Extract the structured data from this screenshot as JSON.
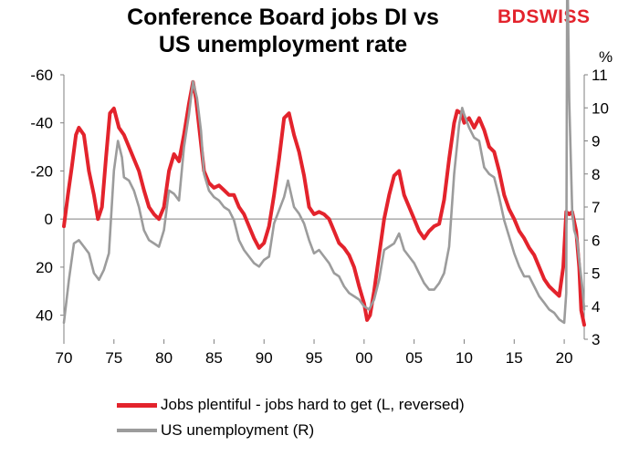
{
  "title_line1": "Conference Board jobs DI vs",
  "title_line2": "US unemployment rate",
  "logo": {
    "part1": "BD",
    "part2": "SWISS"
  },
  "colors": {
    "red": "#e3232c",
    "grey": "#9c9c9c",
    "axis": "#7f7f7f"
  },
  "chart_data": {
    "type": "line",
    "right_axis_unit": "%",
    "xlim": [
      1970,
      2022
    ],
    "x_ticks": [
      "70",
      "75",
      "80",
      "85",
      "90",
      "95",
      "00",
      "05",
      "10",
      "15",
      "20"
    ],
    "left_axis": {
      "min": -60,
      "max": 50,
      "reversed": true,
      "ticks": [
        "-60",
        "-40",
        "-20",
        "0",
        "20",
        "40"
      ]
    },
    "right_axis": {
      "min": 3,
      "max": 11,
      "ticks": [
        "3",
        "4",
        "5",
        "6",
        "7",
        "8",
        "9",
        "10",
        "11"
      ]
    },
    "series": [
      {
        "name": "Jobs plentiful - jobs hard to get (L, reversed)",
        "axis": "left",
        "color": "#e3232c",
        "points": [
          [
            1970,
            3
          ],
          [
            1970.4,
            -10
          ],
          [
            1970.8,
            -22
          ],
          [
            1971.2,
            -35
          ],
          [
            1971.5,
            -38
          ],
          [
            1972,
            -35
          ],
          [
            1972.5,
            -20
          ],
          [
            1973,
            -10
          ],
          [
            1973.4,
            0
          ],
          [
            1973.8,
            -5
          ],
          [
            1974.2,
            -25
          ],
          [
            1974.6,
            -44
          ],
          [
            1975,
            -46
          ],
          [
            1975.5,
            -38
          ],
          [
            1976,
            -35
          ],
          [
            1976.5,
            -30
          ],
          [
            1977,
            -25
          ],
          [
            1977.5,
            -20
          ],
          [
            1978,
            -12
          ],
          [
            1978.5,
            -5
          ],
          [
            1979,
            -2
          ],
          [
            1979.5,
            0
          ],
          [
            1980,
            -5
          ],
          [
            1980.5,
            -20
          ],
          [
            1981,
            -27
          ],
          [
            1981.5,
            -24
          ],
          [
            1982,
            -35
          ],
          [
            1982.5,
            -48
          ],
          [
            1982.9,
            -57
          ],
          [
            1983.2,
            -50
          ],
          [
            1983.6,
            -35
          ],
          [
            1984,
            -20
          ],
          [
            1984.5,
            -15
          ],
          [
            1985,
            -13
          ],
          [
            1985.5,
            -14
          ],
          [
            1986,
            -12
          ],
          [
            1986.5,
            -10
          ],
          [
            1987,
            -10
          ],
          [
            1987.5,
            -5
          ],
          [
            1988,
            -2
          ],
          [
            1988.5,
            3
          ],
          [
            1989,
            8
          ],
          [
            1989.5,
            12
          ],
          [
            1990,
            10
          ],
          [
            1990.5,
            3
          ],
          [
            1991,
            -10
          ],
          [
            1991.5,
            -25
          ],
          [
            1992,
            -42
          ],
          [
            1992.5,
            -44
          ],
          [
            1993,
            -35
          ],
          [
            1993.5,
            -28
          ],
          [
            1994,
            -18
          ],
          [
            1994.5,
            -5
          ],
          [
            1995,
            -2
          ],
          [
            1995.5,
            -3
          ],
          [
            1996,
            -2
          ],
          [
            1996.5,
            0
          ],
          [
            1997,
            5
          ],
          [
            1997.5,
            10
          ],
          [
            1998,
            12
          ],
          [
            1998.5,
            15
          ],
          [
            1999,
            20
          ],
          [
            1999.5,
            28
          ],
          [
            2000,
            35
          ],
          [
            2000.3,
            42
          ],
          [
            2000.6,
            40
          ],
          [
            2001,
            30
          ],
          [
            2001.5,
            15
          ],
          [
            2002,
            0
          ],
          [
            2002.5,
            -10
          ],
          [
            2003,
            -18
          ],
          [
            2003.5,
            -20
          ],
          [
            2004,
            -10
          ],
          [
            2004.5,
            -5
          ],
          [
            2005,
            0
          ],
          [
            2005.5,
            5
          ],
          [
            2006,
            8
          ],
          [
            2006.5,
            5
          ],
          [
            2007,
            3
          ],
          [
            2007.5,
            2
          ],
          [
            2008,
            -8
          ],
          [
            2008.5,
            -25
          ],
          [
            2009,
            -40
          ],
          [
            2009.3,
            -45
          ],
          [
            2009.7,
            -44
          ],
          [
            2010,
            -40
          ],
          [
            2010.5,
            -42
          ],
          [
            2011,
            -38
          ],
          [
            2011.5,
            -42
          ],
          [
            2012,
            -37
          ],
          [
            2012.5,
            -30
          ],
          [
            2013,
            -28
          ],
          [
            2013.5,
            -20
          ],
          [
            2014,
            -10
          ],
          [
            2014.5,
            -4
          ],
          [
            2015,
            0
          ],
          [
            2015.5,
            5
          ],
          [
            2016,
            8
          ],
          [
            2016.5,
            12
          ],
          [
            2017,
            15
          ],
          [
            2017.5,
            20
          ],
          [
            2018,
            25
          ],
          [
            2018.5,
            28
          ],
          [
            2019,
            30
          ],
          [
            2019.5,
            32
          ],
          [
            2019.9,
            20
          ],
          [
            2020.2,
            -3
          ],
          [
            2020.5,
            -2
          ],
          [
            2020.8,
            -3
          ],
          [
            2021.2,
            5
          ],
          [
            2021.5,
            20
          ],
          [
            2021.7,
            38
          ],
          [
            2022,
            44
          ]
        ]
      },
      {
        "name": "US unemployment (R)",
        "axis": "right",
        "color": "#9c9c9c",
        "points": [
          [
            1970,
            3.5
          ],
          [
            1970.5,
            4.8
          ],
          [
            1971,
            5.9
          ],
          [
            1971.5,
            6.0
          ],
          [
            1972,
            5.8
          ],
          [
            1972.5,
            5.6
          ],
          [
            1973,
            5.0
          ],
          [
            1973.5,
            4.8
          ],
          [
            1974,
            5.1
          ],
          [
            1974.5,
            5.6
          ],
          [
            1975,
            8.1
          ],
          [
            1975.4,
            9.0
          ],
          [
            1975.8,
            8.5
          ],
          [
            1976,
            7.9
          ],
          [
            1976.5,
            7.8
          ],
          [
            1977,
            7.5
          ],
          [
            1977.5,
            7.0
          ],
          [
            1978,
            6.3
          ],
          [
            1978.5,
            6.0
          ],
          [
            1979,
            5.9
          ],
          [
            1979.5,
            5.8
          ],
          [
            1980,
            6.3
          ],
          [
            1980.5,
            7.5
          ],
          [
            1981,
            7.4
          ],
          [
            1981.5,
            7.2
          ],
          [
            1982,
            8.8
          ],
          [
            1982.5,
            9.8
          ],
          [
            1982.9,
            10.8
          ],
          [
            1983.3,
            10.3
          ],
          [
            1983.7,
            9.3
          ],
          [
            1984,
            8.0
          ],
          [
            1984.5,
            7.5
          ],
          [
            1985,
            7.3
          ],
          [
            1985.5,
            7.2
          ],
          [
            1986,
            7.0
          ],
          [
            1986.5,
            6.9
          ],
          [
            1987,
            6.6
          ],
          [
            1987.5,
            6.0
          ],
          [
            1988,
            5.7
          ],
          [
            1988.5,
            5.5
          ],
          [
            1989,
            5.3
          ],
          [
            1989.5,
            5.2
          ],
          [
            1990,
            5.4
          ],
          [
            1990.5,
            5.5
          ],
          [
            1991,
            6.5
          ],
          [
            1991.5,
            6.9
          ],
          [
            1992,
            7.3
          ],
          [
            1992.4,
            7.8
          ],
          [
            1993,
            7.0
          ],
          [
            1993.5,
            6.8
          ],
          [
            1994,
            6.5
          ],
          [
            1994.5,
            6.0
          ],
          [
            1995,
            5.6
          ],
          [
            1995.5,
            5.7
          ],
          [
            1996,
            5.5
          ],
          [
            1996.5,
            5.3
          ],
          [
            1997,
            5.0
          ],
          [
            1997.5,
            4.9
          ],
          [
            1998,
            4.6
          ],
          [
            1998.5,
            4.4
          ],
          [
            1999,
            4.3
          ],
          [
            1999.5,
            4.2
          ],
          [
            2000,
            4.0
          ],
          [
            2000.5,
            3.9
          ],
          [
            2001,
            4.2
          ],
          [
            2001.5,
            4.8
          ],
          [
            2002,
            5.7
          ],
          [
            2002.5,
            5.8
          ],
          [
            2003,
            5.9
          ],
          [
            2003.5,
            6.2
          ],
          [
            2004,
            5.7
          ],
          [
            2004.5,
            5.5
          ],
          [
            2005,
            5.3
          ],
          [
            2005.5,
            5.0
          ],
          [
            2006,
            4.7
          ],
          [
            2006.5,
            4.5
          ],
          [
            2007,
            4.5
          ],
          [
            2007.5,
            4.7
          ],
          [
            2008,
            5.0
          ],
          [
            2008.5,
            5.8
          ],
          [
            2009,
            8.0
          ],
          [
            2009.5,
            9.5
          ],
          [
            2009.8,
            10.0
          ],
          [
            2010,
            9.8
          ],
          [
            2010.5,
            9.4
          ],
          [
            2011,
            9.1
          ],
          [
            2011.5,
            9.0
          ],
          [
            2012,
            8.2
          ],
          [
            2012.5,
            8.0
          ],
          [
            2013,
            7.9
          ],
          [
            2013.5,
            7.3
          ],
          [
            2014,
            6.6
          ],
          [
            2014.5,
            6.1
          ],
          [
            2015,
            5.6
          ],
          [
            2015.5,
            5.2
          ],
          [
            2016,
            4.9
          ],
          [
            2016.5,
            4.9
          ],
          [
            2017,
            4.6
          ],
          [
            2017.5,
            4.3
          ],
          [
            2018,
            4.1
          ],
          [
            2018.5,
            3.9
          ],
          [
            2019,
            3.8
          ],
          [
            2019.5,
            3.6
          ],
          [
            2020,
            3.5
          ],
          [
            2020.2,
            4.4
          ],
          [
            2020.3,
            14.7
          ],
          [
            2020.5,
            10.2
          ],
          [
            2020.8,
            6.9
          ],
          [
            2021,
            6.3
          ],
          [
            2021.3,
            6.0
          ],
          [
            2021.5,
            5.4
          ],
          [
            2021.8,
            4.6
          ],
          [
            2022,
            3.9
          ]
        ]
      }
    ],
    "legend_placement": "bottom",
    "grid": false
  }
}
